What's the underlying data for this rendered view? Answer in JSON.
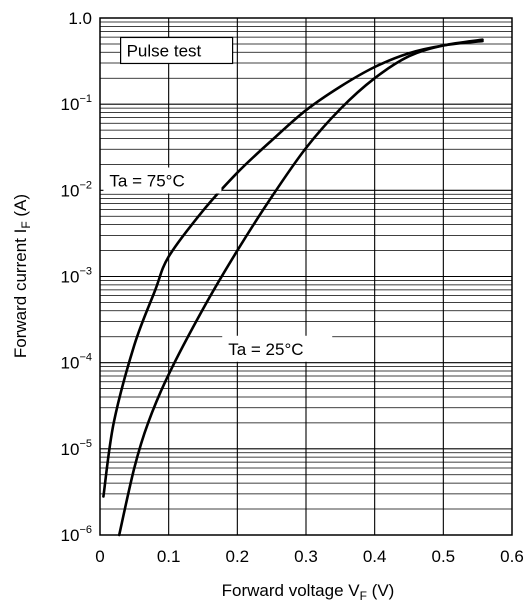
{
  "chart_data": {
    "type": "line",
    "xlabel": "Forward voltage  V",
    "xlabel_sub": "F",
    "xlabel_unit": "(V)",
    "ylabel": "Forward current  I",
    "ylabel_sub": "F",
    "ylabel_unit": "(A)",
    "xlim": [
      0,
      0.6
    ],
    "ylim": [
      1e-06,
      1.0
    ],
    "yscale": "log",
    "grid": true,
    "x_ticks": [
      "0",
      "0.1",
      "0.2",
      "0.3",
      "0.4",
      "0.5",
      "0.6"
    ],
    "y_ticks": [
      {
        "base": "10",
        "exp": "−6"
      },
      {
        "base": "10",
        "exp": "−5"
      },
      {
        "base": "10",
        "exp": "−4"
      },
      {
        "base": "10",
        "exp": "−3"
      },
      {
        "base": "10",
        "exp": "−2"
      },
      {
        "base": "10",
        "exp": "−1"
      },
      {
        "base": "1.0",
        "exp": ""
      }
    ],
    "annotations": [
      "Pulse test",
      "Ta = 75°C",
      "Ta = 25°C"
    ],
    "series": [
      {
        "name": "Ta = 75°C",
        "points": [
          [
            0.005,
            2.8e-06
          ],
          [
            0.02,
            2e-05
          ],
          [
            0.05,
            0.00016
          ],
          [
            0.08,
            0.00068
          ],
          [
            0.1,
            0.0017
          ],
          [
            0.15,
            0.0058
          ],
          [
            0.2,
            0.016
          ],
          [
            0.25,
            0.038
          ],
          [
            0.3,
            0.085
          ],
          [
            0.35,
            0.16
          ],
          [
            0.4,
            0.27
          ],
          [
            0.45,
            0.39
          ],
          [
            0.5,
            0.48
          ],
          [
            0.557,
            0.54
          ]
        ]
      },
      {
        "name": "Ta = 25°C",
        "points": [
          [
            0.028,
            1e-06
          ],
          [
            0.05,
            6e-06
          ],
          [
            0.07,
            2e-05
          ],
          [
            0.1,
            7.3e-05
          ],
          [
            0.15,
            0.00042
          ],
          [
            0.2,
            0.002
          ],
          [
            0.25,
            0.0084
          ],
          [
            0.3,
            0.031
          ],
          [
            0.35,
            0.088
          ],
          [
            0.4,
            0.2
          ],
          [
            0.45,
            0.36
          ],
          [
            0.5,
            0.48
          ],
          [
            0.557,
            0.56
          ]
        ]
      }
    ]
  }
}
